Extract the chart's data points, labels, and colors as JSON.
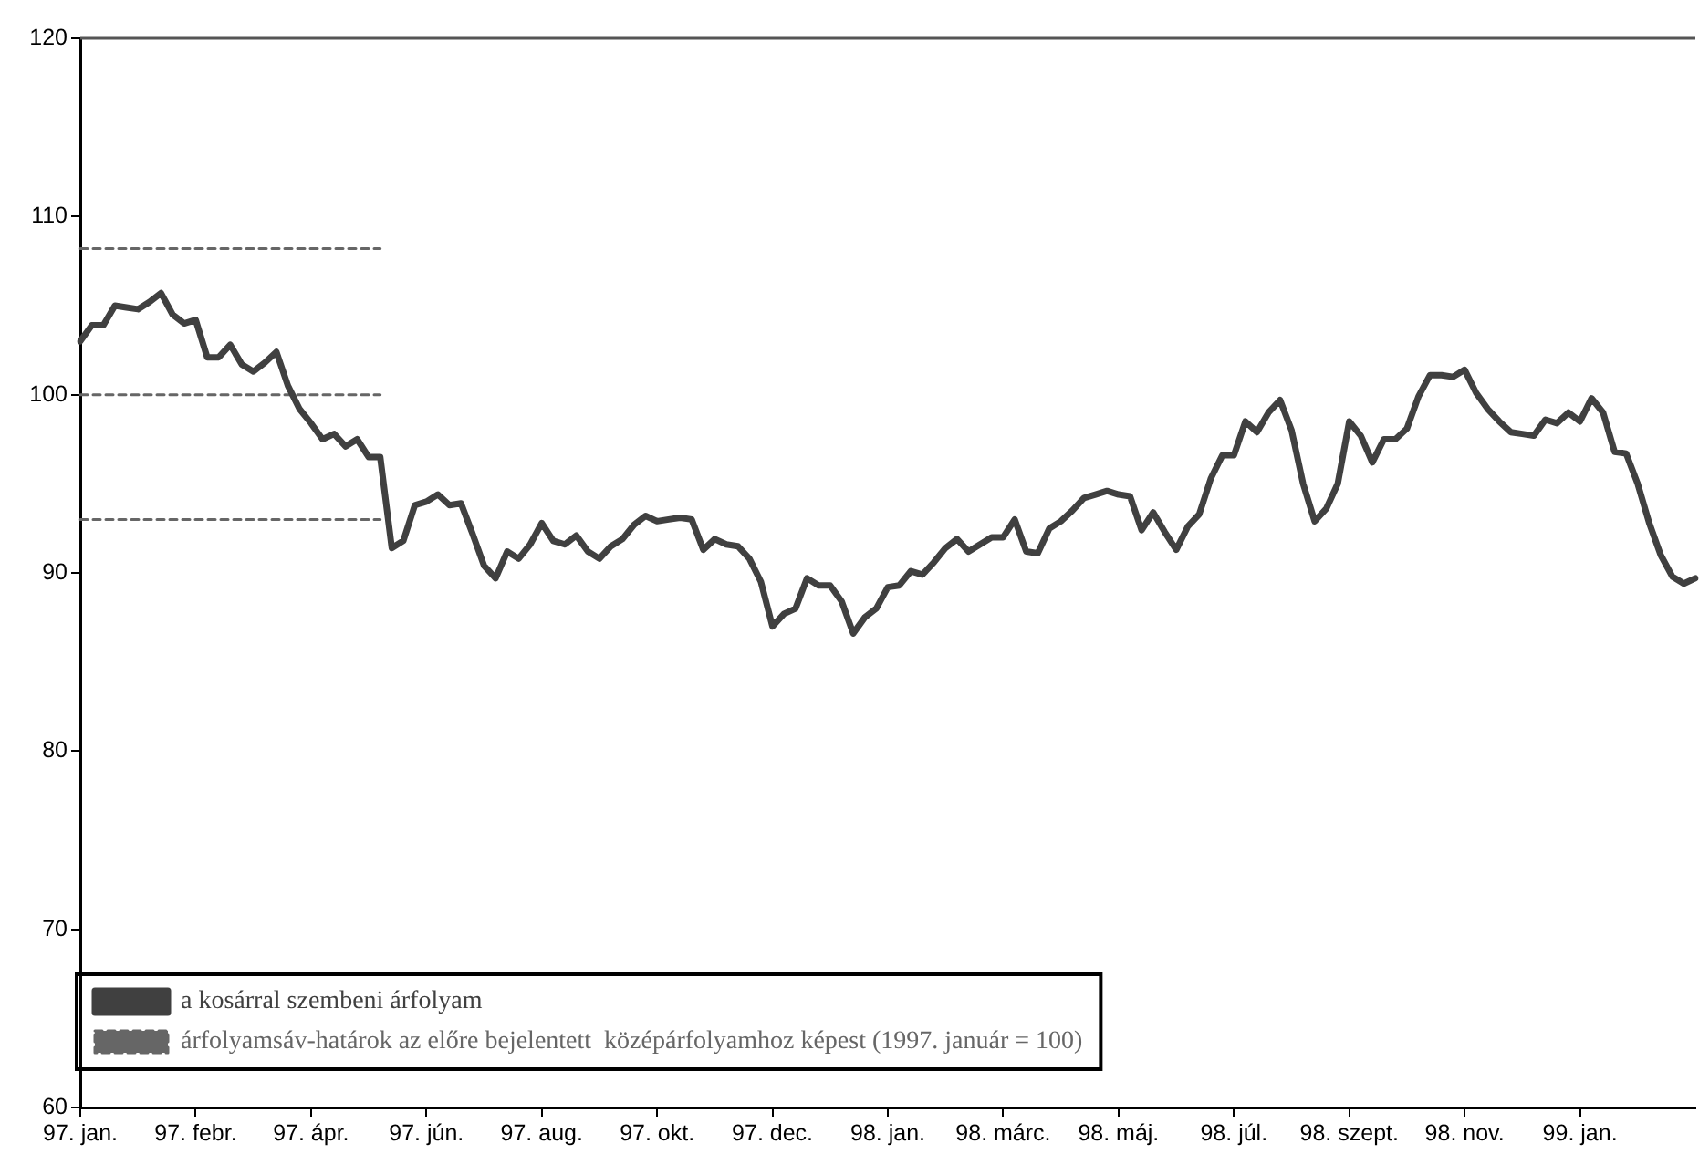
{
  "chart_data": {
    "type": "line",
    "ylim": [
      60,
      120
    ],
    "yticks": [
      60,
      70,
      80,
      90,
      100,
      110,
      120
    ],
    "categories": [
      "97. jan.",
      null,
      null,
      null,
      null,
      null,
      null,
      null,
      null,
      null,
      "97. febr.",
      null,
      null,
      null,
      null,
      null,
      null,
      null,
      null,
      null,
      "97. ápr.",
      null,
      null,
      null,
      null,
      null,
      null,
      null,
      null,
      null,
      "97. jún.",
      null,
      null,
      null,
      null,
      null,
      null,
      null,
      null,
      null,
      "97. aug.",
      null,
      null,
      null,
      null,
      null,
      null,
      null,
      null,
      null,
      "97. okt.",
      null,
      null,
      null,
      null,
      null,
      null,
      null,
      null,
      null,
      "97. dec.",
      null,
      null,
      null,
      null,
      null,
      null,
      null,
      null,
      null,
      "98. jan.",
      null,
      null,
      null,
      null,
      null,
      null,
      null,
      null,
      null,
      "98. márc.",
      null,
      null,
      null,
      null,
      null,
      null,
      null,
      null,
      null,
      "98. máj.",
      null,
      null,
      null,
      null,
      null,
      null,
      null,
      null,
      null,
      "98. júl.",
      null,
      null,
      null,
      null,
      null,
      null,
      null,
      null,
      null,
      "98. szept.",
      null,
      null,
      null,
      null,
      null,
      null,
      null,
      null,
      null,
      "98. nov.",
      null,
      null,
      null,
      null,
      null,
      null,
      null,
      null,
      null,
      "99. jan.",
      null,
      null,
      null,
      null,
      null,
      null,
      null,
      null,
      null,
      null
    ],
    "grid": false,
    "legend": "bottom left",
    "marker": "none",
    "series": [
      {
        "name": "a kosárral szembeni árfolyam",
        "color": "#404040",
        "line_style": "solid",
        "values": [
          103.0,
          103.9,
          103.9,
          105.0,
          104.9,
          104.8,
          105.2,
          105.7,
          104.5,
          104.0,
          104.2,
          102.1,
          102.1,
          102.8,
          101.7,
          101.3,
          101.8,
          102.4,
          100.5,
          99.2,
          98.4,
          97.5,
          97.8,
          97.1,
          97.5,
          96.5,
          96.5,
          91.4,
          91.8,
          93.8,
          94.0,
          94.4,
          93.8,
          93.9,
          92.2,
          90.4,
          89.7,
          91.2,
          90.8,
          91.6,
          92.8,
          91.8,
          91.6,
          92.1,
          91.2,
          90.8,
          91.5,
          91.9,
          92.7,
          93.2,
          92.9,
          93.0,
          93.1,
          93.0,
          91.3,
          91.9,
          91.6,
          91.5,
          90.8,
          89.5,
          87.0,
          87.7,
          88.0,
          89.7,
          89.3,
          89.3,
          88.4,
          86.6,
          87.5,
          88.0,
          89.2,
          89.3,
          90.1,
          89.9,
          90.6,
          91.4,
          91.9,
          91.2,
          91.6,
          92.0,
          92.0,
          93.0,
          91.2,
          91.1,
          92.5,
          92.9,
          93.5,
          94.2,
          94.4,
          94.6,
          94.4,
          94.3,
          92.4,
          93.4,
          92.3,
          91.3,
          92.6,
          93.3,
          95.3,
          96.6,
          96.6,
          98.5,
          97.9,
          99.0,
          99.7,
          98.0,
          95.0,
          92.9,
          93.6,
          95.0,
          98.5,
          97.7,
          96.2,
          97.5,
          97.5,
          98.1,
          99.9,
          101.1,
          101.1,
          101.0,
          101.4,
          100.1,
          99.2,
          98.5,
          97.9,
          97.8,
          97.7,
          98.6,
          98.4,
          99.0,
          98.5,
          99.8,
          99.0,
          96.8,
          96.7,
          95.0,
          92.8,
          91.0,
          89.8,
          89.4,
          89.7
        ]
      },
      {
        "name": "árfolyamsáv-határok az előre bejelentett  középárfolyamhoz képest (1997. január = 100)",
        "color": "#666666",
        "line_style": "dashed",
        "values": [
          108.2,
          108.2,
          108.2,
          108.2,
          108.2,
          108.2,
          108.2,
          108.2,
          108.2,
          108.2,
          108.2,
          108.2,
          108.2,
          108.2,
          108.2,
          108.2,
          108.2,
          108.2,
          108.2,
          108.2,
          108.2,
          108.2,
          108.2,
          108.2,
          108.2,
          108.2,
          108.2,
          null,
          null,
          null,
          null,
          null,
          null,
          null,
          null,
          null,
          null,
          null,
          null,
          null,
          null,
          null,
          null,
          null,
          null,
          null,
          null,
          null,
          null,
          null,
          null,
          null,
          null,
          null,
          null,
          null,
          null,
          null,
          null,
          null,
          null,
          null,
          null,
          null,
          null,
          null,
          null,
          null,
          null,
          null,
          null,
          null,
          null,
          null,
          null,
          null,
          null,
          null,
          null,
          null,
          null,
          null,
          null,
          null,
          null,
          null,
          null,
          null,
          null,
          null,
          null,
          null,
          null,
          null,
          null,
          null,
          null,
          null,
          null,
          null,
          null,
          null,
          null,
          null,
          null,
          null,
          null,
          null,
          null,
          null,
          null,
          null,
          null,
          null,
          null,
          null,
          null,
          null,
          null,
          null,
          null,
          null,
          null,
          null,
          null,
          null,
          null,
          null,
          null,
          null,
          null,
          null,
          null,
          null,
          null,
          null,
          null,
          null,
          null,
          null,
          null
        ]
      },
      {
        "color": "#666666",
        "line_style": "dashed",
        "values": [
          100,
          100,
          100,
          100,
          100,
          100,
          100,
          100,
          100,
          100,
          100,
          100,
          100,
          100,
          100,
          100,
          100,
          100,
          100,
          100,
          100,
          100,
          100,
          100,
          100,
          100,
          100,
          null,
          null,
          null,
          null,
          null,
          null,
          null,
          null,
          null,
          null,
          null,
          null,
          null,
          null,
          null,
          null,
          null,
          null,
          null,
          null,
          null,
          null,
          null,
          null,
          null,
          null,
          null,
          null,
          null,
          null,
          null,
          null,
          null,
          null,
          null,
          null,
          null,
          null,
          null,
          null,
          null,
          null,
          null,
          null,
          null,
          null,
          null,
          null,
          null,
          null,
          null,
          null,
          null,
          null,
          null,
          null,
          null,
          null,
          null,
          null,
          null,
          null,
          null,
          null,
          null,
          null,
          null,
          null,
          null,
          null,
          null,
          null,
          null,
          null,
          null,
          null,
          null,
          null,
          null,
          null,
          null,
          null,
          null,
          null,
          null,
          null,
          null,
          null,
          null,
          null,
          null,
          null,
          null,
          null,
          null,
          null,
          null,
          null,
          null,
          null,
          null,
          null,
          null,
          null,
          null,
          null,
          null,
          null,
          null,
          null,
          null,
          null,
          null,
          null
        ]
      },
      {
        "color": "#666666",
        "line_style": "dashed",
        "values": [
          93,
          93,
          93,
          93,
          93,
          93,
          93,
          93,
          93,
          93,
          93,
          93,
          93,
          93,
          93,
          93,
          93,
          93,
          93,
          93,
          93,
          93,
          93,
          93,
          93,
          93,
          93,
          null,
          null,
          null,
          null,
          null,
          null,
          null,
          null,
          null,
          null,
          null,
          null,
          null,
          null,
          null,
          null,
          null,
          null,
          null,
          null,
          null,
          null,
          null,
          null,
          null,
          null,
          null,
          null,
          null,
          null,
          null,
          null,
          null,
          null,
          null,
          null,
          null,
          null,
          null,
          null,
          null,
          null,
          null,
          null,
          null,
          null,
          null,
          null,
          null,
          null,
          null,
          null,
          null,
          null,
          null,
          null,
          null,
          null,
          null,
          null,
          null,
          null,
          null,
          null,
          null,
          null,
          null,
          null,
          null,
          null,
          null,
          null,
          null,
          null,
          null,
          null,
          null,
          null,
          null,
          null,
          null,
          null,
          null,
          null,
          null,
          null,
          null,
          null,
          null,
          null,
          null,
          null,
          null,
          null,
          null,
          null,
          null,
          null,
          null,
          null,
          null,
          null,
          null,
          null,
          null,
          null,
          null,
          null,
          null,
          null,
          null,
          null,
          null,
          null
        ]
      }
    ]
  }
}
